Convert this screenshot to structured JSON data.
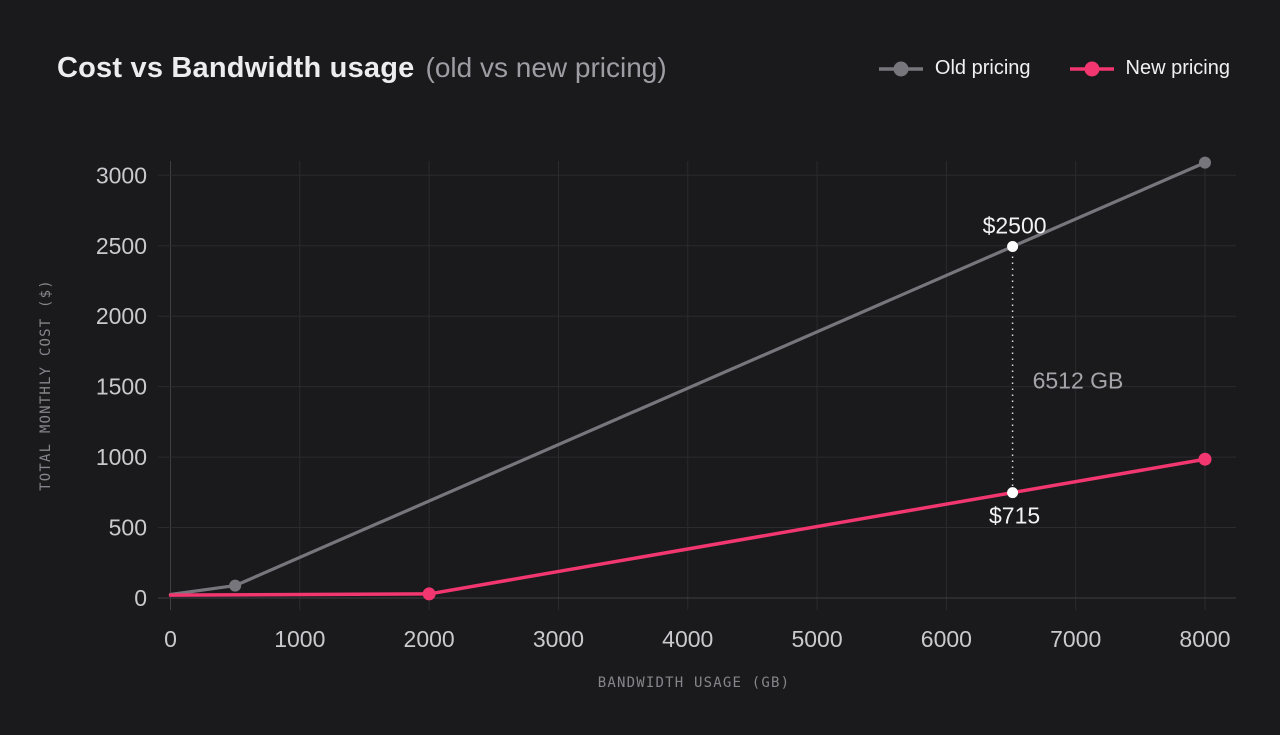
{
  "header": {
    "title": "Cost vs Bandwidth usage",
    "subtitle": "(old vs new pricing)",
    "legend": [
      {
        "label": "Old pricing",
        "color": "#76767c"
      },
      {
        "label": "New pricing",
        "color": "#f2366f"
      }
    ]
  },
  "chart_data": {
    "type": "line",
    "title": "Cost vs Bandwidth usage (old vs new pricing)",
    "xlabel": "BANDWIDTH USAGE (GB)",
    "ylabel": "TOTAL MONTHLY COST ($)",
    "x_ticks": [
      0,
      1000,
      2000,
      3000,
      4000,
      5000,
      6000,
      7000,
      8000
    ],
    "y_ticks": [
      0,
      500,
      1000,
      1500,
      2000,
      2500,
      3000
    ],
    "xlim": [
      0,
      8240
    ],
    "ylim": [
      0,
      3180
    ],
    "grid": true,
    "legend_position": "top-right",
    "series": [
      {
        "name": "Old pricing",
        "color": "#76767c",
        "points": [
          [
            0,
            25
          ],
          [
            500,
            88
          ],
          [
            8000,
            3090
          ]
        ],
        "markers": [
          [
            500,
            88
          ],
          [
            8000,
            3090
          ]
        ]
      },
      {
        "name": "New pricing",
        "color": "#f2366f",
        "points": [
          [
            0,
            20
          ],
          [
            2000,
            29
          ],
          [
            8000,
            985
          ]
        ],
        "markers": [
          [
            2000,
            29
          ],
          [
            8000,
            985
          ]
        ]
      }
    ],
    "annotation": {
      "x": 6512,
      "x_label": "6512 GB",
      "old_cost_value": 2500,
      "old_cost_label": "$2500",
      "new_cost_value": 715,
      "new_cost_label": "$715"
    },
    "colors": {
      "background": "#1a1a1d",
      "grid": "#2b2b2f",
      "axis": "#3e3e44",
      "tick_label": "#c9c9ce",
      "axis_title": "#85858b",
      "title": "#ededf0",
      "subtitle": "#9d9da3",
      "annotation_text": "#f2f2f4",
      "diff_text": "#a4a4aa",
      "dotted_line": "#dadade",
      "annotation_dot": "#ffffff"
    }
  }
}
